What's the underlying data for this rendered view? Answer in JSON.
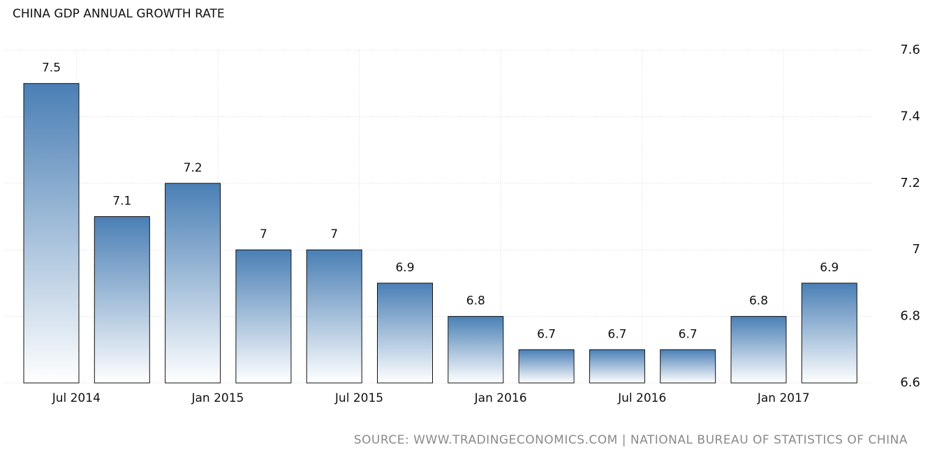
{
  "chart_data": {
    "type": "bar",
    "title": "CHINA GDP ANNUAL GROWTH RATE",
    "source": "SOURCE: WWW.TRADINGECONOMICS.COM | NATIONAL BUREAU OF STATISTICS OF CHINA",
    "categories": [
      "Jul 2014",
      null,
      "Jan 2015",
      null,
      "Jul 2015",
      null,
      "Jan 2016",
      null,
      "Jul 2016",
      null,
      "Jan 2017",
      null
    ],
    "values": [
      7.5,
      7.1,
      7.2,
      7,
      7,
      6.9,
      6.8,
      6.7,
      6.7,
      6.7,
      6.8,
      6.9
    ],
    "color": "#4a7fb5",
    "ylim": [
      6.6,
      7.6
    ],
    "yticks": [
      6.6,
      6.8,
      7,
      7.2,
      7.4,
      7.6
    ],
    "grid": true
  }
}
